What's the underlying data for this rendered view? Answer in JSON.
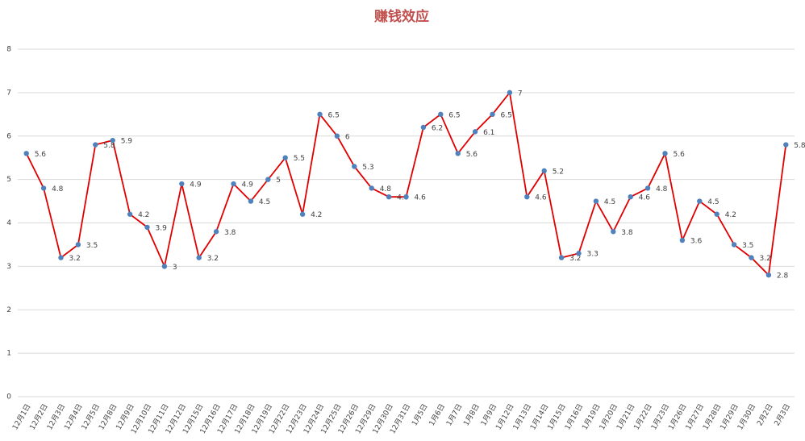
{
  "chart_data": {
    "type": "line",
    "title": "赚钱效应",
    "categories": [
      "12月1日",
      "12月2日",
      "12月3日",
      "12月4日",
      "12月5日",
      "12月8日",
      "12月9日",
      "12月10日",
      "12月11日",
      "12月12日",
      "12月15日",
      "12月16日",
      "12月17日",
      "12月18日",
      "12月19日",
      "12月22日",
      "12月23日",
      "12月24日",
      "12月25日",
      "12月26日",
      "12月29日",
      "12月30日",
      "12月31日",
      "1月5日",
      "1月6日",
      "1月7日",
      "1月8日",
      "1月9日",
      "1月12日",
      "1月13日",
      "1月14日",
      "1月15日",
      "1月16日",
      "1月19日",
      "1月20日",
      "1月21日",
      "1月22日",
      "1月23日",
      "1月26日",
      "1月27日",
      "1月28日",
      "1月29日",
      "1月30日",
      "2月2日",
      "2月3日"
    ],
    "values": [
      5.6,
      4.8,
      3.2,
      3.5,
      5.8,
      5.9,
      4.2,
      3.9,
      3,
      4.9,
      3.2,
      3.8,
      4.9,
      4.5,
      5,
      5.5,
      4.2,
      6.5,
      6,
      5.3,
      4.8,
      4.6,
      4.6,
      6.2,
      6.5,
      5.6,
      6.1,
      6.5,
      7,
      4.6,
      5.2,
      3.2,
      3.3,
      4.5,
      3.8,
      4.6,
      4.8,
      5.6,
      3.6,
      4.5,
      4.2,
      3.5,
      3.2,
      2.8,
      5.8
    ],
    "color": "#e00000",
    "marker_color": "#4f81bd",
    "ylim": [
      0,
      8
    ],
    "yticks": [
      0,
      1,
      2,
      3,
      4,
      5,
      6,
      7,
      8
    ],
    "grid": true,
    "data_labels": true
  }
}
